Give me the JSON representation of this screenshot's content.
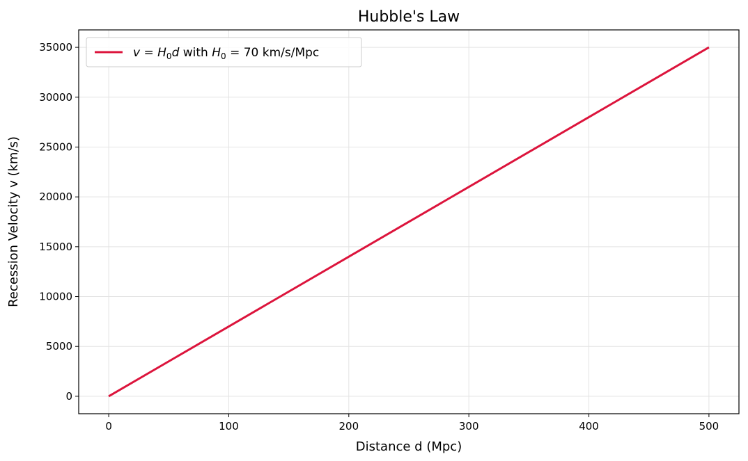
{
  "chart_data": {
    "type": "line",
    "title": "Hubble's Law",
    "xlabel": "Distance d (Mpc)",
    "ylabel": "Recession Velocity v (km/s)",
    "xlim": [
      -25,
      525
    ],
    "ylim": [
      -1750,
      36750
    ],
    "xticks": [
      0,
      100,
      200,
      300,
      400,
      500
    ],
    "yticks": [
      0,
      5000,
      10000,
      15000,
      20000,
      25000,
      30000,
      35000
    ],
    "grid": true,
    "legend_position": "top-left",
    "series": [
      {
        "name": "v = H0d with H0 = 70 km/s/Mpc",
        "color": "#dc143c",
        "x": [
          0,
          100,
          200,
          300,
          400,
          500
        ],
        "y": [
          0,
          7000,
          14000,
          21000,
          28000,
          35000
        ]
      }
    ],
    "legend": {
      "var_v": "v",
      "eq": " = ",
      "H": "H",
      "sub0": "0",
      "var_d": "d",
      "with": " with ",
      "value": " = 70 km/s/Mpc"
    }
  }
}
